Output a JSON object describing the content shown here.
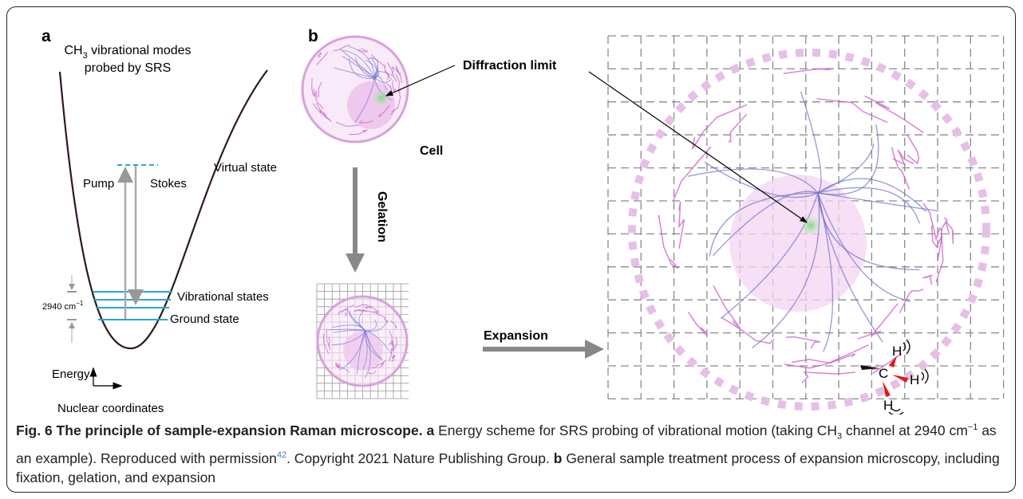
{
  "panel_a": {
    "label": "a",
    "title": {
      "ch": "CH",
      "sub": "3",
      "line1_rest": "vibrational modes",
      "line2": "probed by SRS"
    },
    "virtual_state": "Virtual state",
    "pump": "Pump",
    "stokes": "Stokes",
    "vibrational_states": "Vibrational states",
    "ground_state": "Ground state",
    "energy_gap": {
      "value": "2940 cm",
      "sup": "−1"
    },
    "y_axis": "Energy",
    "x_axis": "Nuclear coordinates"
  },
  "panel_b": {
    "label": "b",
    "diffraction_limit": "Diffraction limit",
    "cell": "Cell",
    "gelation": "Gelation",
    "expansion": "Expansion",
    "molecule": {
      "carbon": "C",
      "hydrogens": [
        "H",
        "H",
        "H"
      ]
    }
  },
  "caption": {
    "fig": "Fig. 6 The principle of sample-expansion Raman microscope.",
    "a_label": "a",
    "a_text_1": "Energy scheme for SRS probing of vibrational motion (taking CH",
    "a_sub": "3",
    "a_text_2": "channel at 2940 cm",
    "a_sup": "−1",
    "a_text_3": "as an example). Reproduced with permission",
    "ref": "42",
    "a_text_4": ". Copyright 2021 Nature Publishing Group.",
    "b_label": "b",
    "b_text": "General sample treatment process of expansion microscopy, including fixation, gelation, and expansion"
  }
}
